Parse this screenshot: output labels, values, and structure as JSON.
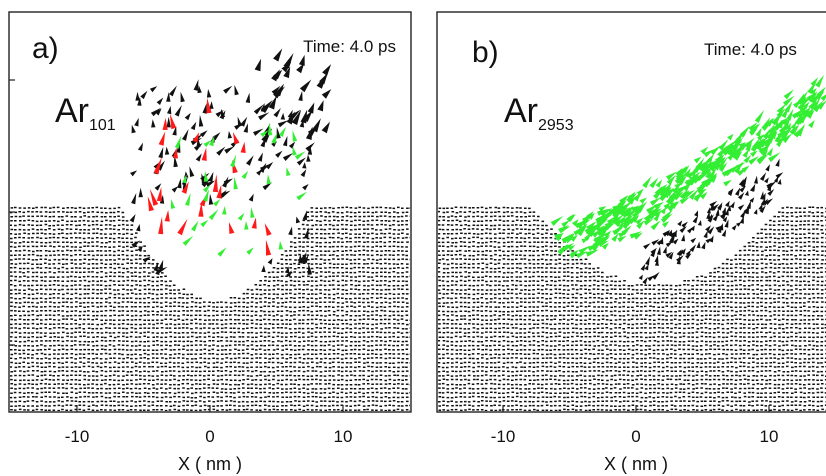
{
  "figure": {
    "panels": [
      {
        "id": "a",
        "letter": "a)",
        "time_label": "Time: 4.0 ps",
        "species_main": "Ar",
        "species_sub": "101",
        "xlabel": "X ( nm )",
        "x_ticks": [
          "-10",
          "0",
          "10"
        ],
        "xlim": [
          -15,
          15
        ],
        "colors": {
          "substrate": "#111111",
          "cluster_a": "#ff1a1a",
          "cluster_b": "#33ee33"
        }
      },
      {
        "id": "b",
        "letter": "b)",
        "time_label": "Time: 4.0 ps",
        "species_main": "Ar",
        "species_sub": "2953",
        "xlabel": "X ( nm )",
        "x_ticks": [
          "-10",
          "0",
          "10"
        ],
        "xlim": [
          -15,
          15
        ],
        "colors": {
          "substrate": "#111111",
          "cluster": "#33ee33"
        }
      }
    ]
  }
}
